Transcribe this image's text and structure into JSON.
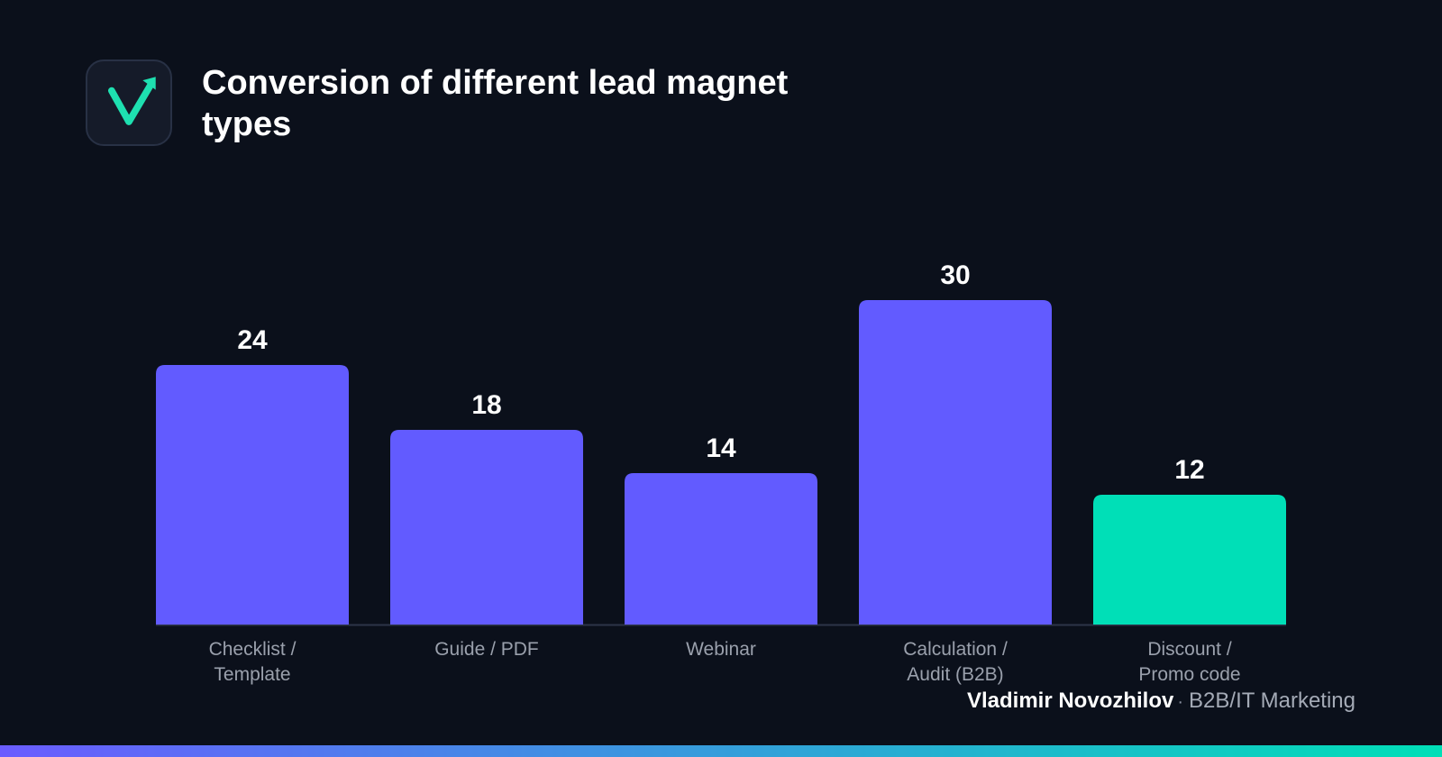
{
  "header": {
    "title": "Conversion of different lead magnet types"
  },
  "logo": {
    "icon": "check-arrow-icon",
    "color": "#1ee0b0"
  },
  "chart_data": {
    "type": "bar",
    "title": "Conversion of different lead magnet types",
    "categories": [
      "Checklist /\nTemplate",
      "Guide / PDF",
      "Webinar",
      "Calculation /\nAudit (B2B)",
      "Discount /\nPromo code"
    ],
    "values": [
      24,
      18,
      14,
      30,
      12
    ],
    "colors": [
      "#625bff",
      "#625bff",
      "#625bff",
      "#625bff",
      "#00dfb7"
    ],
    "ylim": [
      0,
      30
    ],
    "grid": false,
    "legend": "none",
    "xlabel": "",
    "ylabel": ""
  },
  "footer": {
    "author": "Vladimir Novozhilov",
    "separator": "·",
    "role": "B2B/IT Marketing",
    "gradient": [
      "#6a5cff",
      "#00dfb7"
    ]
  }
}
